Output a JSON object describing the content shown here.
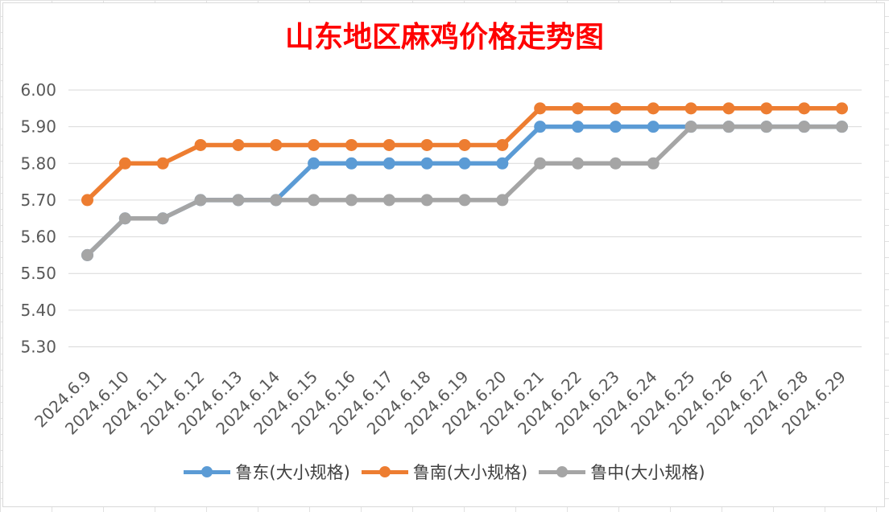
{
  "chart_data": {
    "type": "line",
    "title": "山东地区麻鸡价格走势图",
    "xlabel": "",
    "ylabel": "",
    "categories": [
      "2024.6.9",
      "2024.6.10",
      "2024.6.11",
      "2024.6.12",
      "2024.6.13",
      "2024.6.14",
      "2024.6.15",
      "2024.6.16",
      "2024.6.17",
      "2024.6.18",
      "2024.6.19",
      "2024.6.20",
      "2024.6.21",
      "2024.6.22",
      "2024.6.23",
      "2024.6.24",
      "2024.6.25",
      "2024.6.26",
      "2024.6.27",
      "2024.6.28",
      "2024.6.29"
    ],
    "ylim": [
      5.3,
      6.0
    ],
    "yticks": [
      "5.30",
      "5.40",
      "5.50",
      "5.60",
      "5.70",
      "5.80",
      "5.90",
      "6.00"
    ],
    "grid": true,
    "legend_position": "bottom",
    "series": [
      {
        "name": "鲁东(大小规格)",
        "color": "#5b9bd5",
        "values": [
          5.55,
          5.65,
          5.65,
          5.7,
          5.7,
          5.7,
          5.8,
          5.8,
          5.8,
          5.8,
          5.8,
          5.8,
          5.9,
          5.9,
          5.9,
          5.9,
          5.9,
          5.9,
          5.9,
          5.9,
          5.9
        ]
      },
      {
        "name": "鲁南(大小规格)",
        "color": "#ed7d31",
        "values": [
          5.7,
          5.8,
          5.8,
          5.85,
          5.85,
          5.85,
          5.85,
          5.85,
          5.85,
          5.85,
          5.85,
          5.85,
          5.95,
          5.95,
          5.95,
          5.95,
          5.95,
          5.95,
          5.95,
          5.95,
          5.95
        ]
      },
      {
        "name": "鲁中(大小规格)",
        "color": "#a5a5a5",
        "values": [
          5.55,
          5.65,
          5.65,
          5.7,
          5.7,
          5.7,
          5.7,
          5.7,
          5.7,
          5.7,
          5.7,
          5.7,
          5.8,
          5.8,
          5.8,
          5.8,
          5.9,
          5.9,
          5.9,
          5.9,
          5.9
        ]
      }
    ]
  }
}
